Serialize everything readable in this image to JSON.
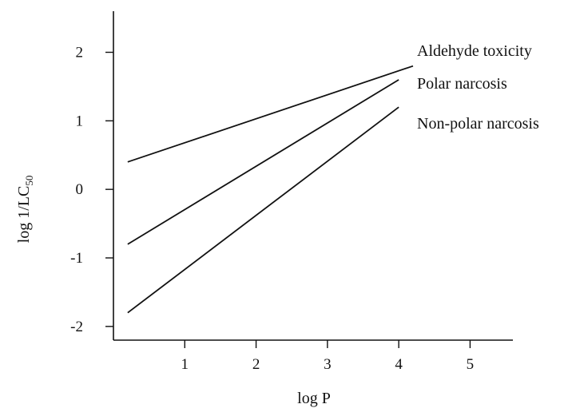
{
  "chart_data": {
    "type": "line",
    "title": "",
    "xlabel": "log P",
    "ylabel": "log 1/LC",
    "ylabel_subscript": "50",
    "xlim": [
      0,
      5.6
    ],
    "ylim": [
      -2.2,
      2.6
    ],
    "xticks": [
      {
        "value": 1,
        "label": "1"
      },
      {
        "value": 2,
        "label": "2"
      },
      {
        "value": 3,
        "label": "3"
      },
      {
        "value": 4,
        "label": "4"
      },
      {
        "value": 5,
        "label": "5"
      }
    ],
    "yticks": [
      {
        "value": 2,
        "label": "2"
      },
      {
        "value": 1,
        "label": "1"
      },
      {
        "value": 0,
        "label": "0"
      },
      {
        "value": -1,
        "label": "-1"
      },
      {
        "value": -2,
        "label": "-2"
      }
    ],
    "grid": false,
    "legend": "direct labels at right of lines",
    "series": [
      {
        "name": "Aldehyde toxicity",
        "x": [
          0.2,
          4.2
        ],
        "y": [
          0.4,
          1.8
        ]
      },
      {
        "name": "Polar narcosis",
        "x": [
          0.2,
          4.0
        ],
        "y": [
          -0.8,
          1.6
        ]
      },
      {
        "name": "Non-polar narcosis",
        "x": [
          0.2,
          4.0
        ],
        "y": [
          -1.8,
          1.2
        ]
      }
    ],
    "colors": {
      "line": "#111111",
      "axis": "#111111"
    }
  }
}
